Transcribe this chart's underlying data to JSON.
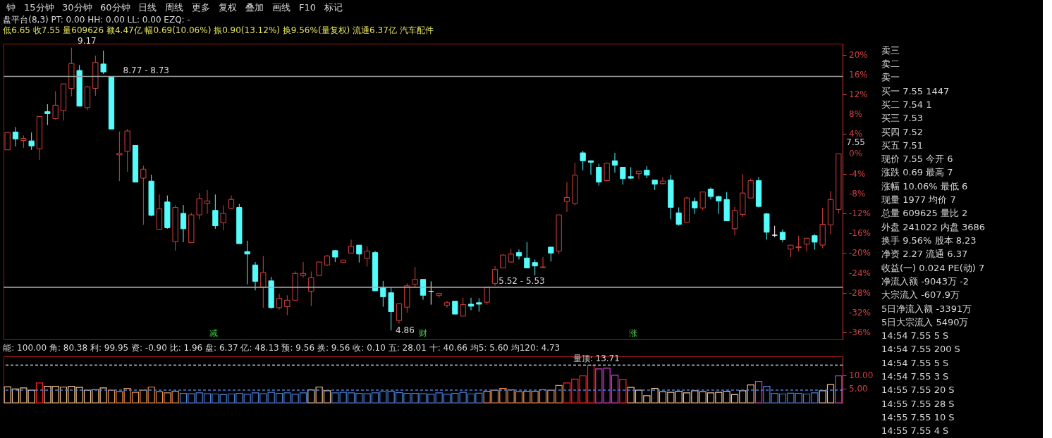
{
  "chart_data": [
    {
      "type": "other",
      "annotations": [
        "钟",
        "15分钟",
        "30分钟",
        "60分钟",
        "日线",
        "周线",
        "更多",
        "复权",
        "叠加",
        "画线",
        "F10",
        "标记"
      ]
    },
    {
      "type": "candlestick",
      "title": "盘平台(8,3)  PT: 0.00  HH: 0.00  LL: 0.00  EZQ: -",
      "subtitle": "低6.65 收7.55 量609626 额4.47亿 幅0.69(10.06%) 振0.90(13.12%) 换9.56%(量复权) 流通6.37亿 汽车配件",
      "categories": [
        null,
        null,
        null,
        null,
        null,
        null,
        null,
        null,
        null,
        null,
        null,
        null,
        null,
        null,
        null,
        null,
        null,
        null,
        null,
        null,
        null,
        null,
        null,
        null,
        null,
        null,
        null,
        null,
        null,
        null,
        null,
        null,
        null,
        null,
        null,
        null,
        null,
        null,
        null,
        null,
        null,
        null,
        null,
        null,
        null,
        null,
        null,
        null,
        null,
        null,
        null,
        null,
        null,
        null,
        null,
        null,
        null,
        null,
        null,
        null,
        null,
        null,
        null,
        null,
        null,
        null,
        null,
        null,
        null,
        null,
        null,
        null,
        null,
        null,
        null,
        null,
        null,
        null,
        null,
        null,
        null,
        null,
        null,
        null,
        null,
        null,
        null,
        null,
        null,
        null,
        null,
        null,
        null,
        null,
        null,
        null,
        null,
        null,
        null,
        null,
        null,
        null,
        null,
        null,
        null
      ],
      "ohlc": [
        [
          0.8,
          4.3,
          0.8,
          4.3
        ],
        [
          4.4,
          5.4,
          1.5,
          3.0
        ],
        [
          2.7,
          3.7,
          1.2,
          3.1
        ],
        [
          2.6,
          4.3,
          0.8,
          1.6
        ],
        [
          1.0,
          7.5,
          -1.2,
          7.5
        ],
        [
          8.5,
          10.0,
          5.8,
          8.1
        ],
        [
          7.1,
          12.6,
          6.9,
          9.8
        ],
        [
          8.7,
          14.1,
          6.7,
          14.1
        ],
        [
          13.2,
          21.4,
          11.6,
          18.2
        ],
        [
          16.8,
          17.9,
          9.6,
          9.6
        ],
        [
          9.3,
          13.7,
          8.8,
          13.5
        ],
        [
          13.2,
          19.8,
          11.7,
          18.4
        ],
        [
          18.1,
          20.8,
          16.1,
          16.5
        ],
        [
          15.5,
          15.5,
          5.0,
          5.0
        ],
        [
          -0.2,
          4.5,
          -5.5,
          0.1
        ],
        [
          0.5,
          5.0,
          -3.6,
          4.6
        ],
        [
          1.7,
          1.7,
          -5.7,
          -5.7
        ],
        [
          -4.9,
          -2.4,
          -14.3,
          -3.1
        ],
        [
          -5.5,
          -4.2,
          -12.6,
          -12.4
        ],
        [
          -15.2,
          -8.2,
          -15.2,
          -11.1
        ],
        [
          -9.7,
          -8.4,
          -15.1,
          -14.9
        ],
        [
          -17.7,
          -10.3,
          -19.5,
          -10.8
        ],
        [
          -12.0,
          -10.3,
          -17.8,
          -15.1
        ],
        [
          -17.9,
          -11.9,
          -17.9,
          -12.3
        ],
        [
          -12.3,
          -7.9,
          -13.2,
          -9.0
        ],
        [
          -10.0,
          -7.3,
          -12.1,
          -9.5
        ],
        [
          -11.4,
          -8.2,
          -15.1,
          -14.5
        ],
        [
          -13.9,
          -10.4,
          -15.4,
          -12.0
        ],
        [
          -11.0,
          -8.4,
          -11.1,
          -9.2
        ],
        [
          -10.8,
          -10.1,
          -18.1,
          -18.1
        ],
        [
          -19.7,
          -17.5,
          -26.3,
          -20.2
        ],
        [
          -22.4,
          -21.8,
          -27.5,
          -25.7
        ],
        [
          -26.9,
          -20.6,
          -31.0,
          -23.9
        ],
        [
          -25.6,
          -24.8,
          -31.2,
          -31.0
        ],
        [
          -31.0,
          -28.2,
          -31.4,
          -29.1
        ],
        [
          -30.8,
          -28.5,
          -32.5,
          -29.5
        ],
        [
          -29.5,
          -23.7,
          -29.5,
          -24.1
        ],
        [
          -24.5,
          -21.8,
          -25.0,
          -24.1
        ],
        [
          -27.7,
          -23.7,
          -30.7,
          -25.0
        ],
        [
          -24.5,
          -21.8,
          -24.5,
          -21.8
        ],
        [
          -22.4,
          -20.4,
          -22.6,
          -20.6
        ],
        [
          -19.5,
          -19.4,
          -21.8,
          -20.8
        ],
        [
          -21.9,
          -21.4,
          -21.9,
          -21.4
        ],
        [
          -20.0,
          -17.3,
          -20.0,
          -18.6
        ],
        [
          -18.4,
          -18.4,
          -21.9,
          -20.2
        ],
        [
          -21.1,
          -18.6,
          -22.7,
          -19.6
        ],
        [
          -19.9,
          -19.6,
          -27.6,
          -27.6
        ],
        [
          -27.0,
          -25.6,
          -30.8,
          -28.8
        ],
        [
          -28.0,
          -26.9,
          -35.6,
          -31.8
        ],
        [
          -33.6,
          -30.1,
          -34.2,
          -30.2
        ],
        [
          -30.9,
          -26.1,
          -32.0,
          -26.6
        ],
        [
          -26.3,
          -22.8,
          -26.9,
          -25.3
        ],
        [
          -25.3,
          -25.3,
          -29.4,
          -28.5
        ],
        [
          -27.7,
          -25.7,
          -30.4,
          -27.7
        ],
        [
          -28.5,
          -28.0,
          -29.0,
          -28.1
        ],
        [
          -30.5,
          -29.6,
          -31.0,
          -30.0
        ],
        [
          -29.7,
          -29.7,
          -32.3,
          -32.3
        ],
        [
          -32.7,
          -29.0,
          -32.7,
          -30.4
        ],
        [
          -30.3,
          -29.0,
          -31.5,
          -30.7
        ],
        [
          -30.0,
          -29.1,
          -31.8,
          -30.3
        ],
        [
          -29.9,
          -26.9,
          -30.4,
          -26.9
        ],
        [
          -26.1,
          -22.6,
          -26.6,
          -23.3
        ],
        [
          -23.0,
          -20.2,
          -23.0,
          -20.4
        ],
        [
          -21.8,
          -19.1,
          -21.9,
          -20.2
        ],
        [
          -19.9,
          -19.3,
          -21.3,
          -20.6
        ],
        [
          -21.0,
          -17.8,
          -23.0,
          -23.0
        ],
        [
          -21.9,
          -21.3,
          -24.5,
          -22.6
        ],
        [
          -22.9,
          -20.8,
          -23.0,
          -22.8
        ],
        [
          -18.8,
          -18.8,
          -21.7,
          -20.0
        ],
        [
          -19.6,
          -12.3,
          -20.2,
          -12.3
        ],
        [
          -9.6,
          -5.7,
          -11.7,
          -8.8
        ],
        [
          -10.0,
          -1.8,
          -10.4,
          -4.3
        ],
        [
          0.2,
          0.6,
          -3.3,
          -1.4
        ],
        [
          -1.4,
          -1.4,
          -4.2,
          -1.7
        ],
        [
          -2.7,
          -2.0,
          -6.4,
          -5.7
        ],
        [
          -5.4,
          -1.8,
          -5.6,
          -1.9
        ],
        [
          -1.4,
          0.2,
          -3.8,
          -2.3
        ],
        [
          -2.7,
          -2.7,
          -6.2,
          -5.0
        ],
        [
          -4.6,
          -2.7,
          -5.1,
          -4.9
        ],
        [
          -4.0,
          -3.5,
          -5.1,
          -3.5
        ],
        [
          -3.3,
          -2.5,
          -4.9,
          -4.3
        ],
        [
          -5.3,
          -5.3,
          -7.3,
          -6.1
        ],
        [
          -6.0,
          -4.7,
          -6.2,
          -5.5
        ],
        [
          -5.3,
          -4.2,
          -13.2,
          -10.8
        ],
        [
          -11.9,
          -10.8,
          -14.5,
          -14.2
        ],
        [
          -13.8,
          -8.6,
          -13.8,
          -8.9
        ],
        [
          -9.6,
          -8.8,
          -12.1,
          -10.9
        ],
        [
          -10.9,
          -7.7,
          -11.4,
          -7.7
        ],
        [
          -7.1,
          -6.8,
          -9.2,
          -8.6
        ],
        [
          -8.6,
          -8.4,
          -12.1,
          -9.5
        ],
        [
          -9.2,
          -7.7,
          -13.5,
          -13.5
        ],
        [
          -15.1,
          -10.7,
          -16.4,
          -11.4
        ],
        [
          -12.2,
          -4.1,
          -12.7,
          -7.9
        ],
        [
          -8.9,
          -5.0,
          -8.9,
          -5.4
        ],
        [
          -5.4,
          -4.7,
          -10.8,
          -10.6
        ],
        [
          -12.1,
          -11.9,
          -17.3,
          -15.8
        ],
        [
          -16.4,
          -14.5,
          -16.8,
          -16.4
        ],
        [
          -15.8,
          -15.2,
          -17.8,
          -17.3
        ],
        [
          -19.2,
          -18.4,
          -20.8,
          -18.4
        ],
        [
          -18.9,
          -16.5,
          -19.7,
          -18.7
        ],
        [
          -18.2,
          -17.0,
          -19.7,
          -17.0
        ],
        [
          -16.5,
          -16.2,
          -19.3,
          -17.8
        ],
        [
          -18.4,
          -10.9,
          -19.0,
          -14.2
        ],
        [
          -14.3,
          -7.5,
          -16.2,
          -9.2
        ],
        [
          -11.2,
          0.0,
          -11.9,
          0.0
        ]
      ],
      "colors": [
        "#d84040",
        "#54fcfc",
        "#d84040",
        "#54fcfc",
        "#d84040",
        "#54fcfc",
        "#d84040",
        "#d84040",
        "#d84040",
        "#54fcfc",
        "#d84040",
        "#d84040",
        "#54fcfc",
        "#54fcfc",
        "#d84040",
        "#d84040",
        "#54fcfc",
        "#d84040",
        "#54fcfc",
        "#d84040",
        "#54fcfc",
        "#d84040",
        "#54fcfc",
        "#d84040",
        "#d84040",
        "#d84040",
        "#54fcfc",
        "#d84040",
        "#d84040",
        "#54fcfc",
        "#54fcfc",
        "#54fcfc",
        "#d84040",
        "#54fcfc",
        "#d84040",
        "#d84040",
        "#d84040",
        "#d84040",
        "#d84040",
        "#d84040",
        "#d84040",
        "#54fcfc",
        "#d84040",
        "#d84040",
        "#54fcfc",
        "#d84040",
        "#54fcfc",
        "#54fcfc",
        "#54fcfc",
        "#d84040",
        "#d84040",
        "#d84040",
        "#54fcfc",
        "#ffffff",
        "#d84040",
        "#d84040",
        "#54fcfc",
        "#d84040",
        "#54fcfc",
        "#54fcfc",
        "#d84040",
        "#d84040",
        "#d84040",
        "#d84040",
        "#54fcfc",
        "#54fcfc",
        "#54fcfc",
        "#d84040",
        "#54fcfc",
        "#d84040",
        "#d84040",
        "#d84040",
        "#54fcfc",
        "#54fcfc",
        "#54fcfc",
        "#d84040",
        "#54fcfc",
        "#54fcfc",
        "#54fcfc",
        "#d84040",
        "#54fcfc",
        "#54fcfc",
        "#d84040",
        "#54fcfc",
        "#54fcfc",
        "#d84040",
        "#54fcfc",
        "#d84040",
        "#54fcfc",
        "#54fcfc",
        "#54fcfc",
        "#d84040",
        "#d84040",
        "#d84040",
        "#54fcfc",
        "#54fcfc",
        "#ffffff",
        "#54fcfc",
        "#d84040",
        "#d84040",
        "#d84040",
        "#54fcfc",
        "#d84040",
        "#d84040",
        "#d84040"
      ],
      "ylim": [
        -37.4,
        22.2
      ],
      "yticks": [
        {
          "value": 20,
          "label": "20%"
        },
        {
          "value": 16,
          "label": "16%"
        },
        {
          "value": 12,
          "label": "12%"
        },
        {
          "value": 8,
          "label": "8%"
        },
        {
          "value": 4,
          "label": "4%"
        },
        {
          "value": 0,
          "label": "0%"
        },
        {
          "value": -4,
          "label": "-4%"
        },
        {
          "value": -8,
          "label": "-8%"
        },
        {
          "value": -12,
          "label": "-12%"
        },
        {
          "value": -16,
          "label": "-16%"
        },
        {
          "value": -20,
          "label": "-20%"
        },
        {
          "value": -24,
          "label": "-24%"
        },
        {
          "value": -28,
          "label": "-28%"
        },
        {
          "value": -32,
          "label": "-32%"
        },
        {
          "value": -36,
          "label": "-36%"
        }
      ],
      "tick_labels": "y",
      "grid": false,
      "ref_lines": [
        {
          "axis": "y",
          "value": 15.6,
          "color": "#a0a0a0",
          "line_style": "solid"
        },
        {
          "axis": "y",
          "value": -26.9,
          "color": "#b0b0b0",
          "line_style": "solid"
        }
      ],
      "annotations": [
        "9.17",
        "4.86",
        "7.55",
        "8.77 - 8.73",
        "5.52 - 5.53",
        "减",
        "财",
        "涨"
      ]
    },
    {
      "type": "bar",
      "title": "能: 100.00  角: 80.38  利: 99.95  资: -0.90  比: 1.96  盘: 6.37  亿: 48.13  预: 9.56  换: 9.56  收: 0.10  五: 28.01  十: 40.66  均5: 5.60  均120: 4.73",
      "categories": [
        null,
        null,
        null,
        null,
        null,
        null,
        null,
        null,
        null,
        null,
        null,
        null,
        null,
        null,
        null,
        null,
        null,
        null,
        null,
        null,
        null,
        null,
        null,
        null,
        null,
        null,
        null,
        null,
        null,
        null,
        null,
        null,
        null,
        null,
        null,
        null,
        null,
        null,
        null,
        null,
        null,
        null,
        null,
        null,
        null,
        null,
        null,
        null,
        null,
        null,
        null,
        null,
        null,
        null,
        null,
        null,
        null,
        null,
        null,
        null,
        null,
        null,
        null,
        null,
        null,
        null,
        null,
        null,
        null,
        null,
        null,
        null,
        null,
        null,
        null,
        null,
        null,
        null,
        null,
        null,
        null,
        null,
        null,
        null,
        null,
        null,
        null,
        null,
        null,
        null,
        null,
        null,
        null,
        null,
        null,
        null,
        null,
        null,
        null,
        null,
        null,
        null,
        null,
        null,
        null
      ],
      "values": [
        5.8,
        5.0,
        5.4,
        4.6,
        7.2,
        6.0,
        6.0,
        5.7,
        6.0,
        5.6,
        4.6,
        4.8,
        5.4,
        4.6,
        4.0,
        5.2,
        3.8,
        4.6,
        5.7,
        4.0,
        3.6,
        4.2,
        3.4,
        3.3,
        3.6,
        3.3,
        3.2,
        3.0,
        3.2,
        3.4,
        3.1,
        3.6,
        3.3,
        3.8,
        3.4,
        3.6,
        3.1,
        3.6,
        4.7,
        5.7,
        4.4,
        3.6,
        3.8,
        3.6,
        3.4,
        3.3,
        3.6,
        4.0,
        4.2,
        3.7,
        3.4,
        3.4,
        3.3,
        3.1,
        3.6,
        3.1,
        3.4,
        3.8,
        3.2,
        3.5,
        4.2,
        4.6,
        5.2,
        4.7,
        4.0,
        4.2,
        4.2,
        4.8,
        4.6,
        6.3,
        7.2,
        8.6,
        9.8,
        13.7,
        12.3,
        12.6,
        10.0,
        8.5,
        5.6,
        4.6,
        2.6,
        5.2,
        4.0,
        3.8,
        4.2,
        3.6,
        4.4,
        4.0,
        3.6,
        3.8,
        4.2,
        3.0,
        4.4,
        6.5,
        7.8,
        6.0,
        3.4,
        3.2,
        3.5,
        3.4,
        3.2,
        3.6,
        4.4,
        6.6,
        9.8
      ],
      "colors": [
        "#f0c090",
        "#f0c090",
        "#f0c090",
        "#f0c090",
        "#ff2020",
        "#f0c090",
        "#f0c090",
        "#f0c090",
        "#f0c090",
        "#f0c090",
        "#f0c090",
        "#f0c090",
        "#f0c090",
        "#e89050",
        "#e89050",
        "#e89050",
        "#e89050",
        "#e89050",
        "#e89050",
        "#e89050",
        "#e89050",
        "#e89050",
        "#4a7fd8",
        "#4a7fd8",
        "#4a7fd8",
        "#4a7fd8",
        "#4a7fd8",
        "#4a7fd8",
        "#4a7fd8",
        "#4a7fd8",
        "#4a7fd8",
        "#4a7fd8",
        "#4a7fd8",
        "#4a7fd8",
        "#4a7fd8",
        "#4a7fd8",
        "#4a7fd8",
        "#4a7fd8",
        "#f0c090",
        "#f0c090",
        "#f0c090",
        "#4a7fd8",
        "#4a7fd8",
        "#4a7fd8",
        "#4a7fd8",
        "#4a7fd8",
        "#4a7fd8",
        "#4a7fd8",
        "#4a7fd8",
        "#4a7fd8",
        "#4a7fd8",
        "#4a7fd8",
        "#4a7fd8",
        "#4a7fd8",
        "#4a7fd8",
        "#4a7fd8",
        "#4a7fd8",
        "#4a7fd8",
        "#4a7fd8",
        "#4a7fd8",
        "#e89050",
        "#e89050",
        "#e89050",
        "#e89050",
        "#e89050",
        "#e89050",
        "#e89050",
        "#e89050",
        "#e89050",
        "#e89050",
        "#ff2020",
        "#ff2020",
        "#ff2020",
        "#ff2020",
        "#d040d0",
        "#d040d0",
        "#d040d0",
        "#ff2020",
        "#f0c090",
        "#f0c090",
        "#f0c090",
        "#f0c090",
        "#f0c090",
        "#f0c090",
        "#f0c090",
        "#f0c090",
        "#f0c090",
        "#f0c090",
        "#f0c090",
        "#f0c090",
        "#f0c090",
        "#f0c090",
        "#f0c090",
        "#f0c090",
        "#d040d0",
        "#4a7fd8",
        "#4a7fd8",
        "#4a7fd8",
        "#4a7fd8",
        "#4a7fd8",
        "#4a7fd8",
        "#4a7fd8",
        "#f0c090",
        "#f0c090",
        "#d040d0"
      ],
      "ylim": [
        0,
        16.9
      ],
      "yticks": [
        {
          "value": 10,
          "label": "10.00"
        },
        {
          "value": 5,
          "label": "5.00"
        }
      ],
      "tick_labels": "y",
      "grid": false,
      "ref_lines": [
        {
          "axis": "y",
          "value": 13.7,
          "color": "#d0d0d0",
          "line_style": "dashed"
        },
        {
          "axis": "y",
          "value": 4.6,
          "color": "#4a7fd8",
          "line_style": "dashed"
        }
      ],
      "annotations": [
        "量顶: 13.71"
      ]
    },
    {
      "type": "other",
      "annotations": [
        "卖三",
        "卖二",
        "卖一",
        "买一  7.55  1447",
        "买二  7.54  1",
        "买三  7.53",
        "买四  7.52",
        "买五  7.51",
        "现价  7.55  今开  6",
        "涨跌  0.69  最高  7",
        "涨幅  10.06%  最低  6",
        "现量  1977  均价  7",
        "总量  609625  量比  2",
        "外盘  241022  内盘  3686",
        "换手  9.56%  股本  8.23",
        "净资  2.27  流通  6.37",
        "收益(一)  0.024  PE(动)  7",
        "净流入额  -9043万  -2",
        "大宗流入  -607.9万",
        "5日净流入额  -3391万",
        "5日大宗流入  5490万",
        "14:54  7.55  5  S",
        "14:54  7.55  200  S",
        "14:54  7.55  5  S",
        "14:54  7.55  3  S",
        "14:55  7.55  20  S",
        "14:55  7.55  28  S",
        "14:55  7.55  10  S",
        "14:55  7.55  4  S"
      ]
    }
  ]
}
